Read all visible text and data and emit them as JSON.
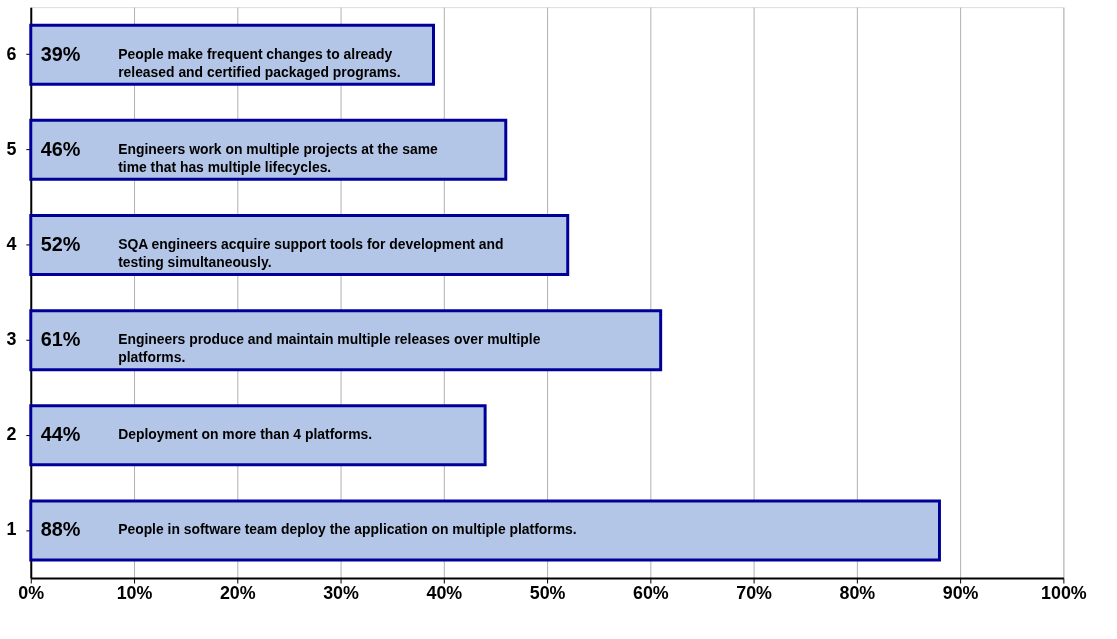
{
  "chart_data": {
    "type": "bar",
    "orientation": "horizontal",
    "categories": [
      "6",
      "5",
      "4",
      "3",
      "2",
      "1"
    ],
    "values": [
      39,
      46,
      52,
      61,
      44,
      88
    ],
    "value_labels": [
      "39%",
      "46%",
      "52%",
      "61%",
      "44%",
      "88%"
    ],
    "color": "#b4c6e7",
    "xlim": [
      0,
      100
    ],
    "xticks": [
      {
        "value": 0,
        "label": "0%"
      },
      {
        "value": 10,
        "label": "10%"
      },
      {
        "value": 20,
        "label": "20%"
      },
      {
        "value": 30,
        "label": "30%"
      },
      {
        "value": 40,
        "label": "40%"
      },
      {
        "value": 50,
        "label": "50%"
      },
      {
        "value": 60,
        "label": "60%"
      },
      {
        "value": 70,
        "label": "70%"
      },
      {
        "value": 80,
        "label": "80%"
      },
      {
        "value": 90,
        "label": "90%"
      },
      {
        "value": 100,
        "label": "100%"
      }
    ],
    "grid": "x",
    "annotations": [
      "People make frequent changes to already released and certified packaged programs.",
      "Engineers work on multiple projects at the same time that has multiple lifecycles.",
      "SQA engineers acquire support tools for development and testing simultaneously.",
      "Engineers produce and maintain multiple releases over multiple platforms.",
      "Deployment on more than 4 platforms.",
      "People in software team deploy the application on multiple platforms."
    ]
  }
}
